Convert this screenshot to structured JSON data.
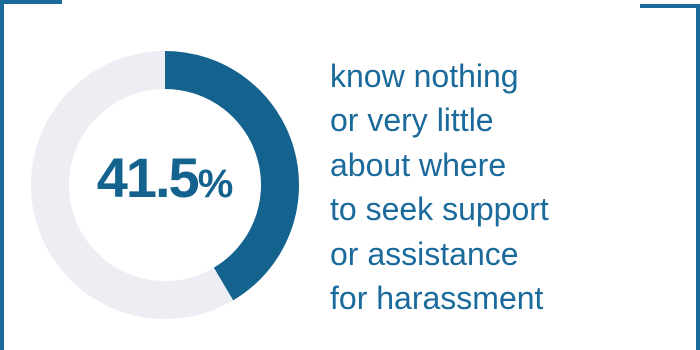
{
  "chart_data": {
    "type": "pie",
    "variant": "donut",
    "values": [
      41.5,
      58.5
    ],
    "value_label": "41.5",
    "unit": "%",
    "colors": {
      "value": "#14638f",
      "remainder": "#eceef3"
    },
    "caption_lines": [
      "know nothing",
      "or very little",
      "about where",
      "to seek support",
      "or assistance",
      "for harassment"
    ]
  },
  "colors": {
    "frame": "#1b6a9c",
    "text": "#1b6a9c"
  }
}
